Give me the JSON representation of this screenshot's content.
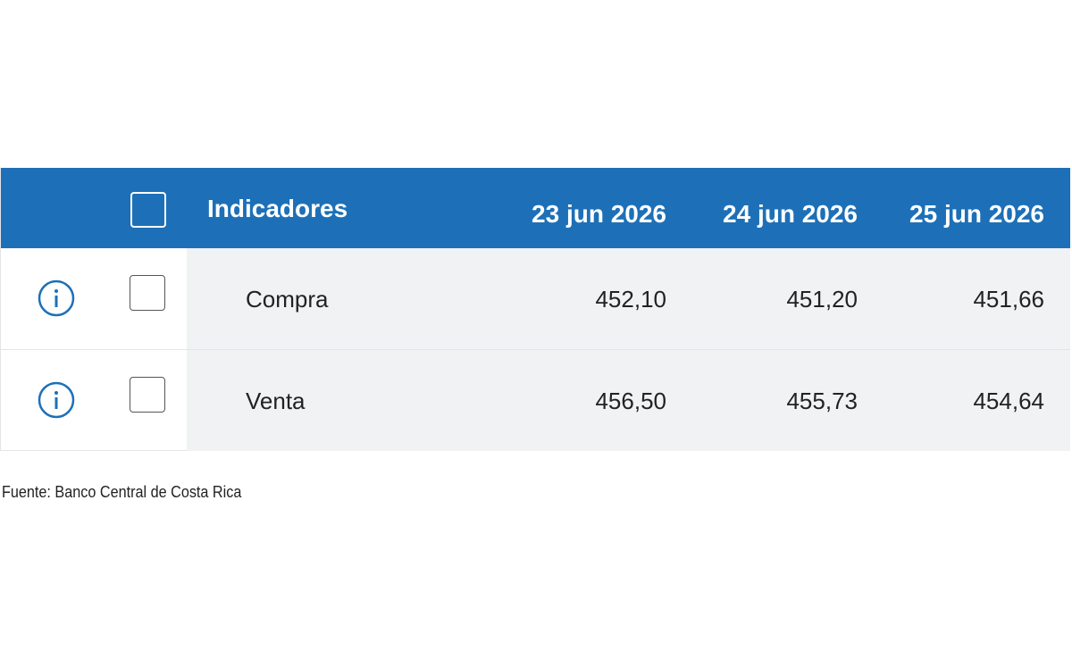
{
  "table": {
    "header": [
      "Indicadores",
      "23 jun 2026",
      "24 jun 2026",
      "25 jun 2026"
    ],
    "rows": [
      [
        "Compra",
        "452,10",
        "451,20",
        "451,66"
      ],
      [
        "Venta",
        "456,50",
        "455,73",
        "454,64"
      ]
    ]
  },
  "footer": {
    "source": "Fuente: Banco Central de Costa Rica"
  }
}
